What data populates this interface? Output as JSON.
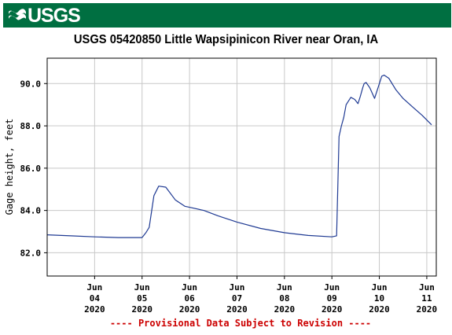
{
  "banner": {
    "logo_text": "USGS",
    "logo_icon": "usgs-wave-icon",
    "color": "#006f41"
  },
  "chart_data": {
    "type": "line",
    "title": "USGS 05420850 Little Wapsipinicon River near Oran, IA",
    "ylabel": "Gage height, feet",
    "xlabel": "",
    "ylim": [
      80.9,
      91.2
    ],
    "xlim": [
      3.0,
      11.2
    ],
    "grid": true,
    "y_ticks": [
      {
        "value": 82,
        "label": "82.0"
      },
      {
        "value": 84,
        "label": "84.0"
      },
      {
        "value": 86,
        "label": "86.0"
      },
      {
        "value": 88,
        "label": "88.0"
      },
      {
        "value": 90,
        "label": "90.0"
      }
    ],
    "x_ticks": [
      {
        "value": 4,
        "month": "Jun",
        "day": "04",
        "year": "2020"
      },
      {
        "value": 5,
        "month": "Jun",
        "day": "05",
        "year": "2020"
      },
      {
        "value": 6,
        "month": "Jun",
        "day": "06",
        "year": "2020"
      },
      {
        "value": 7,
        "month": "Jun",
        "day": "07",
        "year": "2020"
      },
      {
        "value": 8,
        "month": "Jun",
        "day": "08",
        "year": "2020"
      },
      {
        "value": 9,
        "month": "Jun",
        "day": "09",
        "year": "2020"
      },
      {
        "value": 10,
        "month": "Jun",
        "day": "10",
        "year": "2020"
      },
      {
        "value": 11,
        "month": "Jun",
        "day": "11",
        "year": "2020"
      }
    ],
    "series": [
      {
        "color": "#1f3a93",
        "x": [
          3.0,
          3.5,
          4.0,
          4.5,
          4.9,
          5.0,
          5.08,
          5.15,
          5.25,
          5.35,
          5.5,
          5.7,
          5.9,
          6.0,
          6.3,
          6.6,
          7.0,
          7.5,
          8.0,
          8.5,
          9.0,
          9.1,
          9.15,
          9.2,
          9.25,
          9.3,
          9.4,
          9.48,
          9.55,
          9.6,
          9.65,
          9.68,
          9.72,
          9.8,
          9.9,
          10.0,
          10.05,
          10.1,
          10.2,
          10.35,
          10.5,
          10.7,
          10.9,
          11.1
        ],
        "y": [
          82.85,
          82.8,
          82.75,
          82.72,
          82.72,
          82.72,
          82.95,
          83.2,
          84.7,
          85.15,
          85.1,
          84.5,
          84.2,
          84.15,
          84.0,
          83.75,
          83.45,
          83.15,
          82.95,
          82.82,
          82.75,
          82.8,
          87.5,
          88.0,
          88.4,
          89.0,
          89.35,
          89.25,
          89.05,
          89.4,
          89.8,
          90.0,
          90.05,
          89.8,
          89.3,
          90.0,
          90.35,
          90.4,
          90.25,
          89.7,
          89.3,
          88.9,
          88.5,
          88.05
        ]
      }
    ]
  },
  "footer": {
    "note": "---- Provisional Data Subject to Revision ----",
    "color": "#cc0000"
  }
}
